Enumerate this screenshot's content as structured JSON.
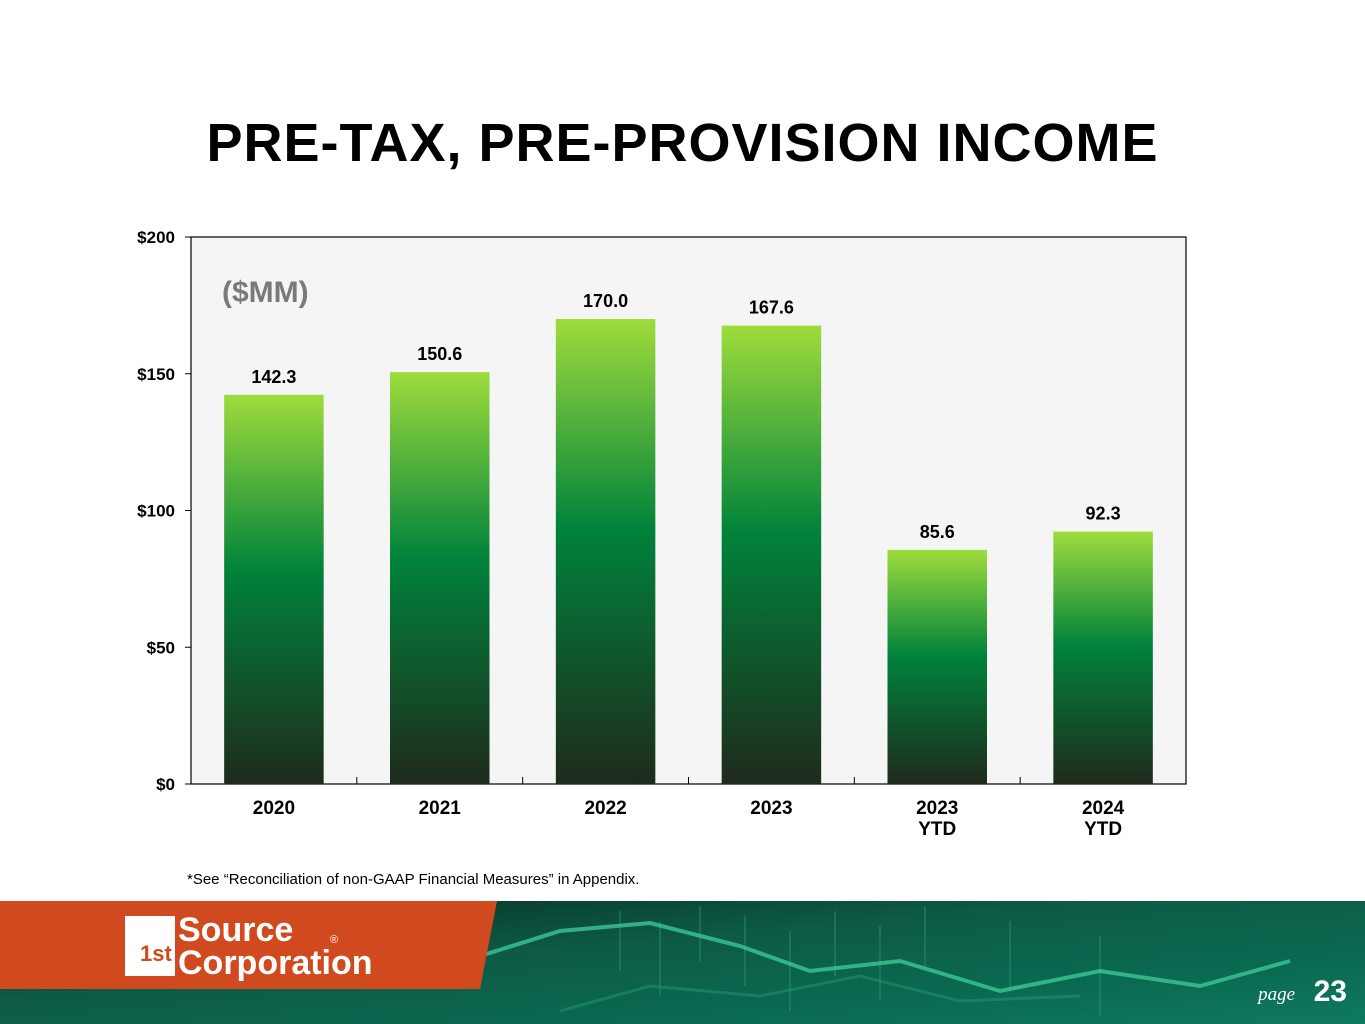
{
  "page": {
    "title": "PRE-TAX, PRE-PROVISION INCOME",
    "footnote": "*See “Reconciliation of non-GAAP Financial Measures” in Appendix.",
    "page_label": "page",
    "page_number": "23"
  },
  "logo": {
    "text_line1": "Source",
    "text_line2": "Corporation",
    "badge": "1st",
    "registered": "®"
  },
  "colors": {
    "bar_top": "#9fdc3c",
    "bar_mid": "#00833b",
    "bar_bottom": "#1f2a1c",
    "plot_bg": "#f5f5f5",
    "footer_orange": "#d14a1f",
    "footer_teal": "#0c4a3a"
  },
  "chart_data": {
    "type": "bar",
    "unit_label": "($MM)",
    "categories": [
      "2020",
      "2021",
      "2022",
      "2023",
      "2023\nYTD",
      "2024\nYTD"
    ],
    "values": [
      142.3,
      150.6,
      170.0,
      167.6,
      85.6,
      92.3
    ],
    "value_labels": [
      "142.3",
      "150.6",
      "170.0",
      "167.6",
      "85.6",
      "92.3"
    ],
    "y_ticks": [
      0,
      50,
      100,
      150,
      200
    ],
    "y_tick_labels": [
      "$0",
      "$50",
      "$100",
      "$150",
      "$200"
    ],
    "ylim": [
      0,
      200
    ],
    "grid": false
  }
}
